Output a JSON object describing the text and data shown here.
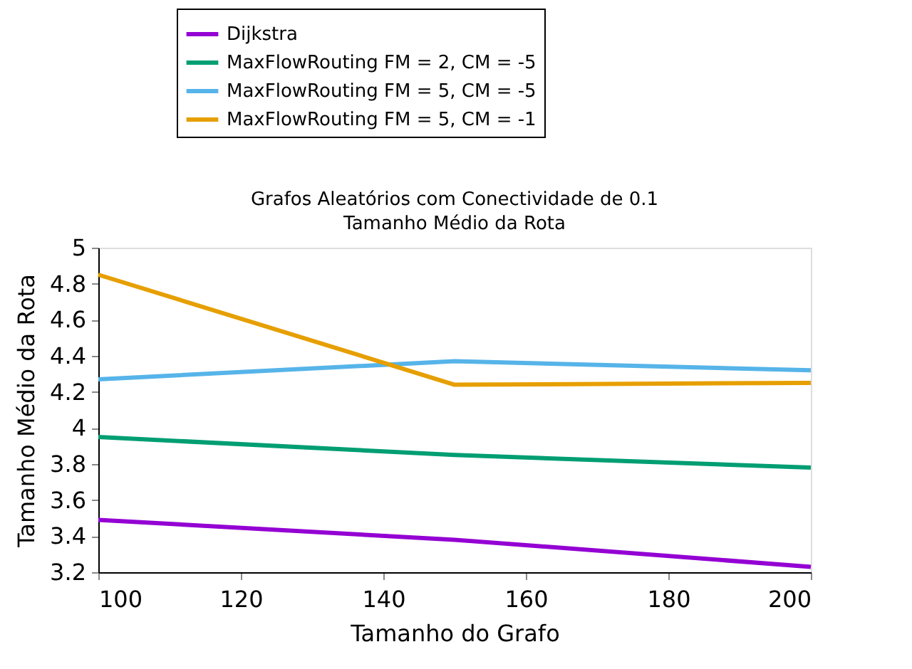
{
  "chart_data": {
    "type": "line",
    "title": [
      "Grafos Aleatórios com Conectividade de 0.1",
      "Tamanho Médio da Rota"
    ],
    "xlabel": "Tamanho do Grafo",
    "ylabel": "Tamanho Médio da Rota",
    "x": [
      100,
      150,
      200
    ],
    "series": [
      {
        "name": "Dijkstra",
        "color": "#9400d3",
        "values": [
          3.49,
          3.38,
          3.23
        ]
      },
      {
        "name": "MaxFlowRouting FM = 2, CM = -5",
        "color": "#009e73",
        "values": [
          3.95,
          3.85,
          3.78
        ]
      },
      {
        "name": "MaxFlowRouting FM = 5, CM = -5",
        "color": "#56b4e9",
        "values": [
          4.27,
          4.37,
          4.32
        ]
      },
      {
        "name": "MaxFlowRouting FM = 5, CM = -1",
        "color": "#e69f00",
        "values": [
          4.85,
          4.24,
          4.25
        ]
      }
    ],
    "xlim": [
      100,
      200
    ],
    "xticks": [
      100,
      120,
      140,
      160,
      180,
      200
    ],
    "ylim": [
      3.2,
      5
    ],
    "yticks": [
      3.2,
      3.4,
      3.6,
      3.8,
      4,
      4.2,
      4.4,
      4.6,
      4.8,
      5
    ],
    "grid": false,
    "legend": "top",
    "marker": "none",
    "line_style": "solid"
  }
}
